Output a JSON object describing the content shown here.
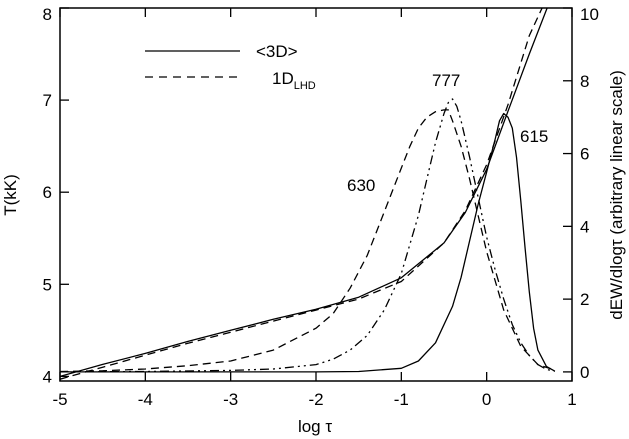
{
  "chart_data": {
    "type": "line",
    "title": "",
    "xlabel": "log τ",
    "ylabel": "T(kK)",
    "y2label": "dEW/dlogτ (arbitrary linear scale)",
    "xlim": [
      -5,
      1
    ],
    "ylim": [
      3.95,
      8
    ],
    "y2lim": [
      -0.25,
      10
    ],
    "grid": false,
    "legend_placement": "top-left",
    "x_ticks": [
      -5,
      -4,
      -3,
      -2,
      -1,
      0,
      1
    ],
    "y_ticks": [
      4,
      5,
      6,
      7,
      8
    ],
    "y2_ticks": [
      0,
      2,
      4,
      6,
      8,
      10
    ],
    "legend": [
      {
        "name": "<3D>",
        "style": "solid"
      },
      {
        "name": "1D",
        "subscript": "LHD",
        "style": "dashed"
      }
    ],
    "series": [
      {
        "name": "<3D>",
        "axis": "left",
        "style": "solid",
        "legend": true,
        "x": [
          -5,
          -4.5,
          -4,
          -3.5,
          -3,
          -2.5,
          -2,
          -1.5,
          -1,
          -0.5,
          -0.25,
          0,
          0.25,
          0.5,
          0.75,
          0.85
        ],
        "y": [
          4.0,
          4.13,
          4.25,
          4.38,
          4.5,
          4.62,
          4.73,
          4.86,
          5.07,
          5.45,
          5.78,
          6.25,
          6.88,
          7.5,
          8.1,
          8.3
        ]
      },
      {
        "name": "1D_LHD",
        "axis": "left",
        "style": "dashed",
        "legend": true,
        "x": [
          -5,
          -4.5,
          -4,
          -3.5,
          -3,
          -2.5,
          -2,
          -1.5,
          -1,
          -0.5,
          -0.25,
          0,
          0.25,
          0.5,
          0.65
        ],
        "y": [
          3.97,
          4.1,
          4.23,
          4.36,
          4.48,
          4.6,
          4.72,
          4.84,
          5.03,
          5.45,
          5.8,
          6.3,
          6.95,
          7.7,
          8.0
        ]
      },
      {
        "name": "630",
        "axis": "right",
        "style": "dashed",
        "label": "630",
        "x": [
          -5,
          -4.5,
          -4,
          -3.5,
          -3,
          -2.5,
          -2,
          -1.8,
          -1.6,
          -1.4,
          -1.2,
          -1.0,
          -0.9,
          -0.8,
          -0.7,
          -0.6,
          -0.5,
          -0.45,
          -0.4,
          -0.3,
          -0.2,
          -0.1,
          0,
          0.2,
          0.4,
          0.6,
          0.8
        ],
        "y": [
          0.01,
          0.03,
          0.08,
          0.17,
          0.3,
          0.6,
          1.2,
          1.6,
          2.3,
          3.2,
          4.4,
          5.6,
          6.2,
          6.7,
          7.0,
          7.15,
          7.2,
          7.2,
          6.9,
          6.2,
          5.3,
          4.3,
          3.3,
          1.7,
          0.7,
          0.2,
          0.05
        ]
      },
      {
        "name": "777",
        "axis": "right",
        "style": "dash-dot-dot",
        "label": "777",
        "x": [
          -5,
          -4,
          -3,
          -2.5,
          -2,
          -1.8,
          -1.6,
          -1.4,
          -1.2,
          -1.0,
          -0.8,
          -0.7,
          -0.6,
          -0.5,
          -0.45,
          -0.4,
          -0.35,
          -0.3,
          -0.2,
          -0.1,
          0,
          0.1,
          0.2,
          0.3,
          0.4,
          0.5,
          0.6,
          0.7,
          0.8
        ],
        "y": [
          0,
          0.01,
          0.04,
          0.08,
          0.2,
          0.35,
          0.6,
          1.0,
          1.7,
          2.7,
          4.3,
          5.3,
          6.3,
          7.1,
          7.4,
          7.5,
          7.3,
          6.9,
          5.9,
          4.8,
          3.7,
          2.8,
          2.0,
          1.3,
          0.8,
          0.45,
          0.2,
          0.07,
          0.02
        ]
      },
      {
        "name": "615",
        "axis": "right",
        "style": "solid",
        "label": "615",
        "x": [
          -5,
          -2,
          -1.5,
          -1.0,
          -0.8,
          -0.6,
          -0.4,
          -0.3,
          -0.2,
          -0.1,
          0,
          0.1,
          0.15,
          0.2,
          0.25,
          0.3,
          0.35,
          0.4,
          0.45,
          0.5,
          0.55,
          0.6,
          0.7,
          0.8
        ],
        "y": [
          0,
          0,
          0.01,
          0.1,
          0.3,
          0.8,
          1.8,
          2.6,
          3.6,
          4.6,
          5.5,
          6.4,
          6.9,
          7.1,
          7.0,
          6.7,
          5.9,
          4.7,
          3.4,
          2.2,
          1.2,
          0.6,
          0.15,
          0.02
        ]
      }
    ]
  }
}
